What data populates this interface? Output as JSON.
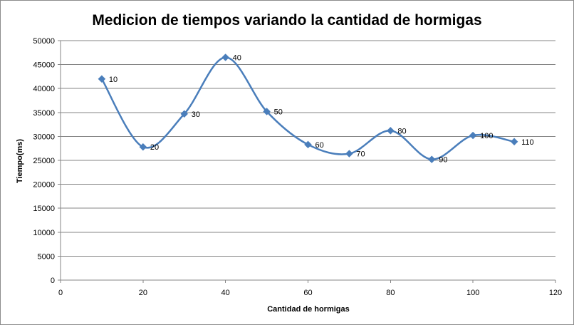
{
  "chart_data": {
    "type": "scatter",
    "title": "Medicion de tiempos variando la cantidad de hormigas",
    "xlabel": "Cantidad  de hormigas",
    "ylabel": "Tiempo(ms)",
    "xlim": [
      0,
      120
    ],
    "ylim": [
      0,
      50000
    ],
    "x_ticks": [
      0,
      20,
      40,
      60,
      80,
      100,
      120
    ],
    "y_ticks": [
      0,
      5000,
      10000,
      15000,
      20000,
      25000,
      30000,
      35000,
      40000,
      45000,
      50000
    ],
    "grid": "horizontal",
    "smooth": true,
    "series_color": "#4a7ebb",
    "series": [
      {
        "x": [
          10,
          20,
          30,
          40,
          50,
          60,
          70,
          80,
          90,
          100,
          110
        ],
        "y": [
          42000,
          27800,
          34700,
          46500,
          35200,
          28300,
          26400,
          31200,
          25200,
          30200,
          28900
        ],
        "labels": [
          "10",
          "20",
          "30",
          "40",
          "50",
          "60",
          "70",
          "80",
          "90",
          "100",
          "110"
        ]
      }
    ]
  }
}
